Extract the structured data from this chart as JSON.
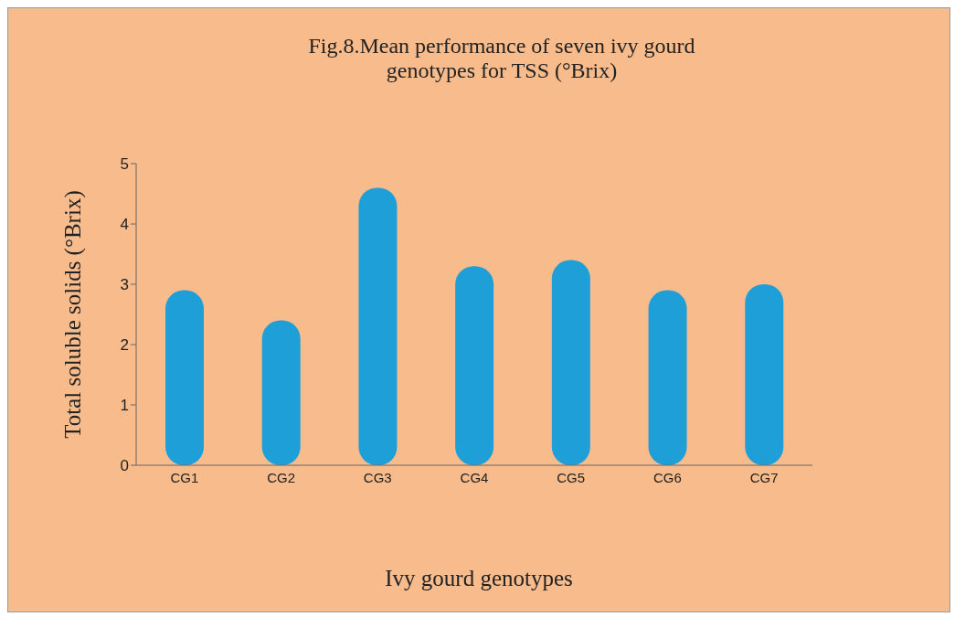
{
  "chart_data": {
    "type": "bar",
    "title": "Fig.8.Mean performance of seven  ivy gourd genotypes for TSS (°Brix)",
    "xlabel": "Ivy gourd genotypes",
    "ylabel": "Total soluble solids  (°Brix)",
    "categories": [
      "CG1",
      "CG2",
      "CG3",
      "CG4",
      "CG5",
      "CG6",
      "CG7"
    ],
    "values": [
      2.9,
      2.4,
      4.6,
      3.3,
      3.4,
      2.9,
      3.0
    ],
    "color": "#1e9fd8",
    "ylim": [
      0,
      5
    ],
    "yticks": [
      0,
      1,
      2,
      3,
      4,
      5
    ],
    "grid": false
  }
}
